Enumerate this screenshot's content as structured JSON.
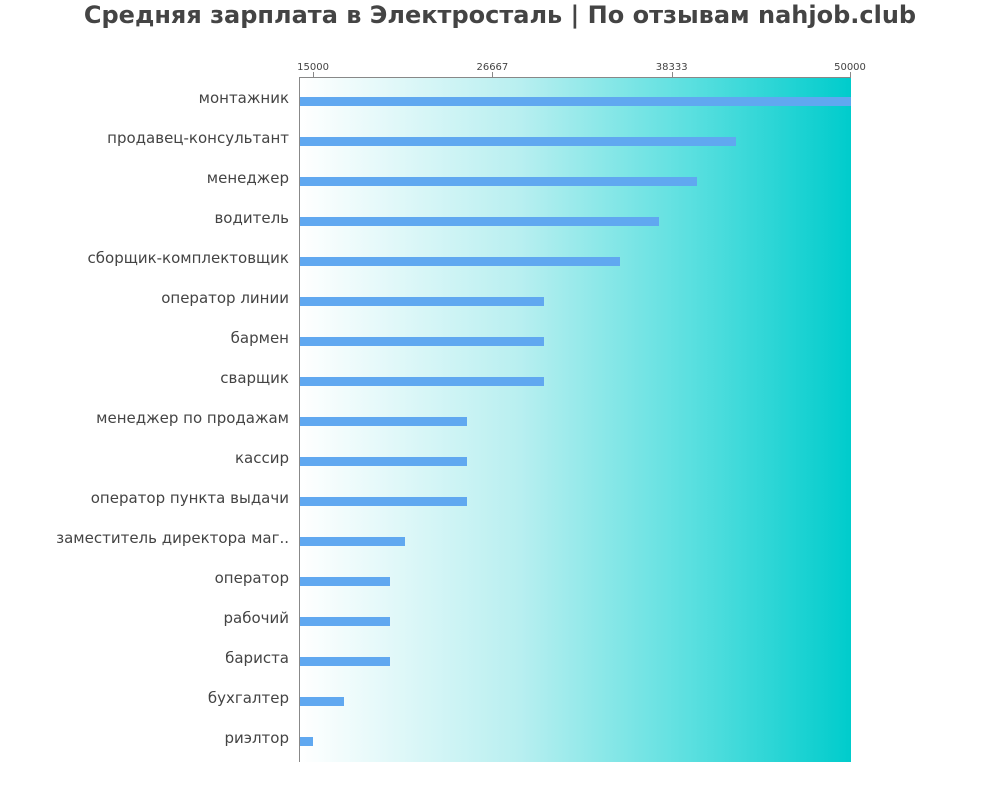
{
  "title": "Средняя зарплата в Электросталь | По отзывам nahjob.club",
  "chart_data": {
    "type": "bar",
    "orientation": "horizontal",
    "title": "Средняя зарплата в Электросталь | По отзывам nahjob.club",
    "xlabel": "",
    "ylabel": "",
    "xlim": [
      14150,
      50000
    ],
    "ticks": [
      "15000",
      "26667",
      "38333",
      "50000"
    ],
    "tick_values": [
      15000,
      26667,
      38333,
      50000
    ],
    "grid": false,
    "legend": null,
    "categories": [
      "монтажник",
      "продавец-консультант",
      "менеджер",
      "водитель",
      "сборщик-комплектовщик",
      "оператор линии",
      "бармен",
      "сварщик",
      "менеджер по продажам",
      "кассир",
      "оператор пункта выдачи",
      "заместитель директора маг..",
      "оператор",
      "рабочий",
      "бариста",
      "бухгалтер",
      "риэлтор"
    ],
    "values": [
      50000,
      42500,
      40000,
      37500,
      35000,
      30000,
      30000,
      30000,
      25000,
      25000,
      25000,
      21000,
      20000,
      20000,
      20000,
      17000,
      15000
    ],
    "colors": {
      "bar": "#60a8f0",
      "background_gradient_start": "#ffffff",
      "background_gradient_end": "#00cccc",
      "text": "#444444"
    }
  }
}
